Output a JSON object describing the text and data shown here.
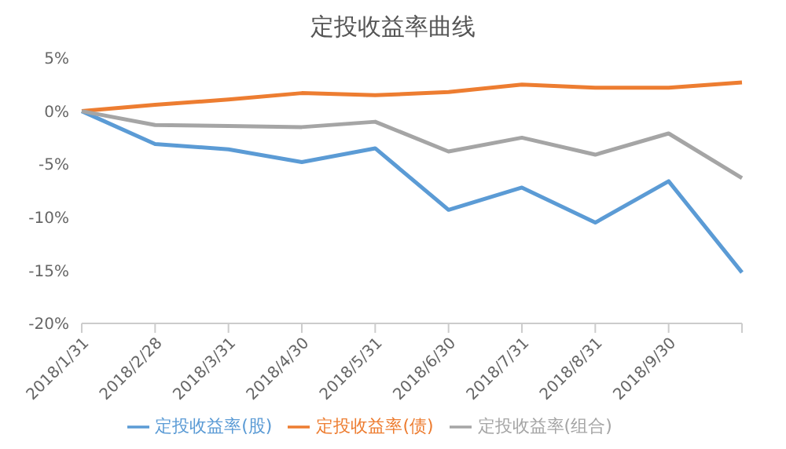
{
  "chart_data": {
    "type": "line",
    "title": "定投收益率曲线",
    "categories": [
      "2018/1/31",
      "2018/2/28",
      "2018/3/31",
      "2018/4/30",
      "2018/5/31",
      "2018/6/30",
      "2018/7/31",
      "2018/8/31",
      "2018/9/30",
      null
    ],
    "series": [
      {
        "name": "定投收益率(股)",
        "color": "#5b9bd5",
        "values": [
          0,
          -3.1,
          -3.6,
          -4.8,
          -3.5,
          -9.3,
          -7.2,
          -10.5,
          -6.6,
          -15.2
        ]
      },
      {
        "name": "定投收益率(债)",
        "color": "#ed7d31",
        "values": [
          0,
          0.6,
          1.1,
          1.7,
          1.5,
          1.8,
          2.5,
          2.2,
          2.2,
          2.7
        ]
      },
      {
        "name": "定投收益率(组合)",
        "color": "#a5a5a5",
        "values": [
          0,
          -1.3,
          -1.4,
          -1.5,
          -1.0,
          -3.8,
          -2.5,
          -4.1,
          -2.1,
          -6.3
        ]
      }
    ],
    "ylim": [
      -20,
      5
    ],
    "yticks": [
      {
        "value": 5,
        "label": "5%"
      },
      {
        "value": 0,
        "label": "0%"
      },
      {
        "value": -5,
        "label": "-5%"
      },
      {
        "value": -10,
        "label": "-10%"
      },
      {
        "value": -15,
        "label": "-15%"
      },
      {
        "value": -20,
        "label": "-20%"
      }
    ],
    "grid": false,
    "legend": "bottom",
    "marker": "none",
    "line_style": "solid"
  }
}
